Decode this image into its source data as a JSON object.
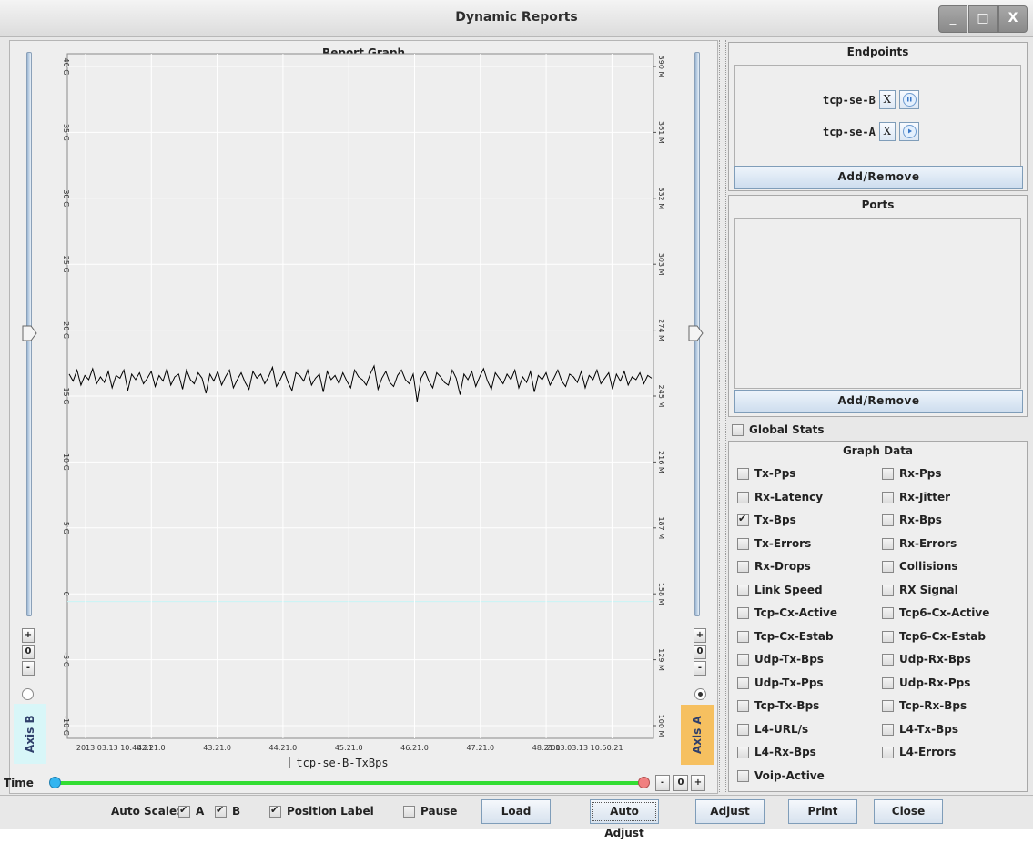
{
  "window": {
    "title": "Dynamic Reports",
    "controls": [
      "_",
      "□",
      "X"
    ]
  },
  "graph": {
    "title": "Report Graph",
    "series_label": "tcp-se-B-TxBps",
    "axis_b_label": "Axis B",
    "axis_a_label": "Axis A",
    "axis_b_spin": {
      "plus": "+",
      "value": "0",
      "minus": "-"
    },
    "axis_a_spin": {
      "plus": "+",
      "value": "0",
      "minus": "-"
    },
    "left_ticks": [
      "40 G",
      "35 G",
      "30 G",
      "25 G",
      "20 G",
      "15 G",
      "10 G",
      "5 G",
      "0",
      "-5 G",
      "-10 G"
    ],
    "right_ticks": [
      "390 M",
      "361 M",
      "332 M",
      "303 M",
      "274 M",
      "245 M",
      "216 M",
      "187 M",
      "158 M",
      "129 M",
      "100 M"
    ],
    "x_ticks": [
      "2013.03.13 10:40:21",
      "42:21.0",
      "43:21.0",
      "44:21.0",
      "45:21.0",
      "46:21.0",
      "47:21.0",
      "48:21.0",
      "2013.03.13 10:50:21"
    ],
    "time_label": "Time",
    "time_spin": {
      "minus": "-",
      "value": "0",
      "plus": "+"
    }
  },
  "chart_data": {
    "type": "line",
    "title": "Report Graph",
    "xlabel": "tcp-se-B-TxBps",
    "ylabel": "",
    "x_start": "2013.03.13 10:40:21",
    "x_end": "2013.03.13 10:50:21",
    "ylim_left": [
      -10,
      40
    ],
    "ylim_right": [
      100,
      390
    ],
    "series": [
      {
        "name": "tcp-se-B-TxBps",
        "axis": "left",
        "color": "#000000",
        "values": [
          16.6,
          16.1,
          16.9,
          15.8,
          16.5,
          16.2,
          17.0,
          15.9,
          16.4,
          16.0,
          16.8,
          15.6,
          16.5,
          16.3,
          16.9,
          15.4,
          16.6,
          16.2,
          16.7,
          15.9,
          16.3,
          16.8,
          15.7,
          16.5,
          16.1,
          17.0,
          15.8,
          16.4,
          16.6,
          15.5,
          16.9,
          16.2,
          15.9,
          16.7,
          16.3,
          15.2,
          16.6,
          16.1,
          16.8,
          15.8,
          16.4,
          16.9,
          15.6,
          16.2,
          16.7,
          16.0,
          15.5,
          16.8,
          16.3,
          16.6,
          15.9,
          16.4,
          17.1,
          15.7,
          16.2,
          16.8,
          16.0,
          15.4,
          16.7,
          16.5,
          16.1,
          16.9,
          15.8,
          16.3,
          16.6,
          15.3,
          16.8,
          16.2,
          16.5,
          15.9,
          16.7,
          16.1,
          15.6,
          16.9,
          16.4,
          16.2,
          15.8,
          16.6,
          17.2,
          15.5,
          16.3,
          16.8,
          16.0,
          15.7,
          16.5,
          16.9,
          16.2,
          15.9,
          16.6,
          14.6,
          16.3,
          16.8,
          16.1,
          15.6,
          16.7,
          16.4,
          16.0,
          15.8,
          16.9,
          16.3,
          15.1,
          16.6,
          16.2,
          16.8,
          15.7,
          16.4,
          17.0,
          16.1,
          15.5,
          16.7,
          16.3,
          15.9,
          16.6,
          16.2,
          16.9,
          15.6,
          16.4,
          16.0,
          16.8,
          15.3,
          16.5,
          16.2,
          16.7,
          15.8,
          16.3,
          16.9,
          16.1,
          15.7,
          16.6,
          16.4,
          16.0,
          16.8,
          15.6,
          16.5,
          16.2,
          16.9,
          15.9,
          16.3,
          16.7,
          15.5,
          16.6,
          16.1,
          16.8,
          15.8,
          16.4,
          16.2,
          16.7,
          15.9,
          16.5,
          16.3
        ]
      }
    ]
  },
  "endpoints": {
    "title": "Endpoints",
    "items": [
      {
        "name": "tcp-se-B",
        "x": "X",
        "state": "pause"
      },
      {
        "name": "tcp-se-A",
        "x": "X",
        "state": "play"
      }
    ],
    "add_remove": "Add/Remove"
  },
  "ports": {
    "title": "Ports",
    "add_remove": "Add/Remove"
  },
  "global_stats": {
    "label": "Global Stats",
    "checked": false
  },
  "graph_data": {
    "title": "Graph Data",
    "left": [
      {
        "label": "Tx-Pps",
        "checked": false
      },
      {
        "label": "Rx-Latency",
        "checked": false
      },
      {
        "label": "Tx-Bps",
        "checked": true
      },
      {
        "label": "Tx-Errors",
        "checked": false
      },
      {
        "label": "Rx-Drops",
        "checked": false
      },
      {
        "label": "Link Speed",
        "checked": false
      },
      {
        "label": "Tcp-Cx-Active",
        "checked": false
      },
      {
        "label": "Tcp-Cx-Estab",
        "checked": false
      },
      {
        "label": "Udp-Tx-Bps",
        "checked": false
      },
      {
        "label": "Udp-Tx-Pps",
        "checked": false
      },
      {
        "label": "Tcp-Tx-Bps",
        "checked": false
      },
      {
        "label": "L4-URL/s",
        "checked": false
      },
      {
        "label": "L4-Rx-Bps",
        "checked": false
      },
      {
        "label": "Voip-Active",
        "checked": false
      }
    ],
    "right": [
      {
        "label": "Rx-Pps",
        "checked": false
      },
      {
        "label": "Rx-Jitter",
        "checked": false
      },
      {
        "label": "Rx-Bps",
        "checked": false
      },
      {
        "label": "Rx-Errors",
        "checked": false
      },
      {
        "label": "Collisions",
        "checked": false
      },
      {
        "label": "RX Signal",
        "checked": false
      },
      {
        "label": "Tcp6-Cx-Active",
        "checked": false
      },
      {
        "label": "Tcp6-Cx-Estab",
        "checked": false
      },
      {
        "label": "Udp-Rx-Bps",
        "checked": false
      },
      {
        "label": "Udp-Rx-Pps",
        "checked": false
      },
      {
        "label": "Tcp-Rx-Bps",
        "checked": false
      },
      {
        "label": "L4-Tx-Bps",
        "checked": false
      },
      {
        "label": "L4-Errors",
        "checked": false
      }
    ]
  },
  "bottom": {
    "auto_scale": "Auto Scale:",
    "a_label": "A",
    "a_checked": true,
    "b_label": "B",
    "b_checked": true,
    "position_label": "Position Label",
    "position_checked": true,
    "pause": "Pause",
    "pause_checked": false,
    "load": "Load",
    "auto_adjust": "Auto Adjust",
    "adjust": "Adjust",
    "print": "Print",
    "close": "Close"
  },
  "colors": {
    "axis_b_bg": "#d8f6f8",
    "axis_a_bg": "#f6c060",
    "timeline": "#33dd33",
    "time_start": "#33b5f0",
    "time_end": "#f08080"
  }
}
